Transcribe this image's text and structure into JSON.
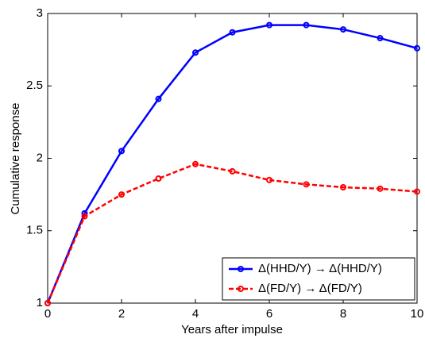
{
  "chart_data": {
    "type": "line",
    "xlabel": "Years after impulse",
    "ylabel": "Cumulative response",
    "x": [
      0,
      1,
      2,
      3,
      4,
      5,
      6,
      7,
      8,
      9,
      10
    ],
    "series": [
      {
        "name": "Δ(HHD/Y) → Δ(HHD/Y)",
        "color": "#0000ff",
        "linestyle": "solid",
        "values": [
          1,
          1.62,
          2.05,
          2.41,
          2.73,
          2.87,
          2.92,
          2.92,
          2.89,
          2.83,
          2.76
        ]
      },
      {
        "name": "Δ(FD/Y) → Δ(FD/Y)",
        "color": "#ff0000",
        "linestyle": "dashed",
        "values": [
          1,
          1.6,
          1.75,
          1.86,
          1.96,
          1.91,
          1.85,
          1.82,
          1.8,
          1.79,
          1.77
        ]
      }
    ],
    "xlim": [
      0,
      10
    ],
    "xticks": [
      0,
      2,
      4,
      6,
      8,
      10
    ],
    "ylim": [
      1,
      3
    ],
    "yticks": [
      1,
      1.5,
      2,
      2.5,
      3
    ],
    "grid": false,
    "legend": "lower right"
  }
}
